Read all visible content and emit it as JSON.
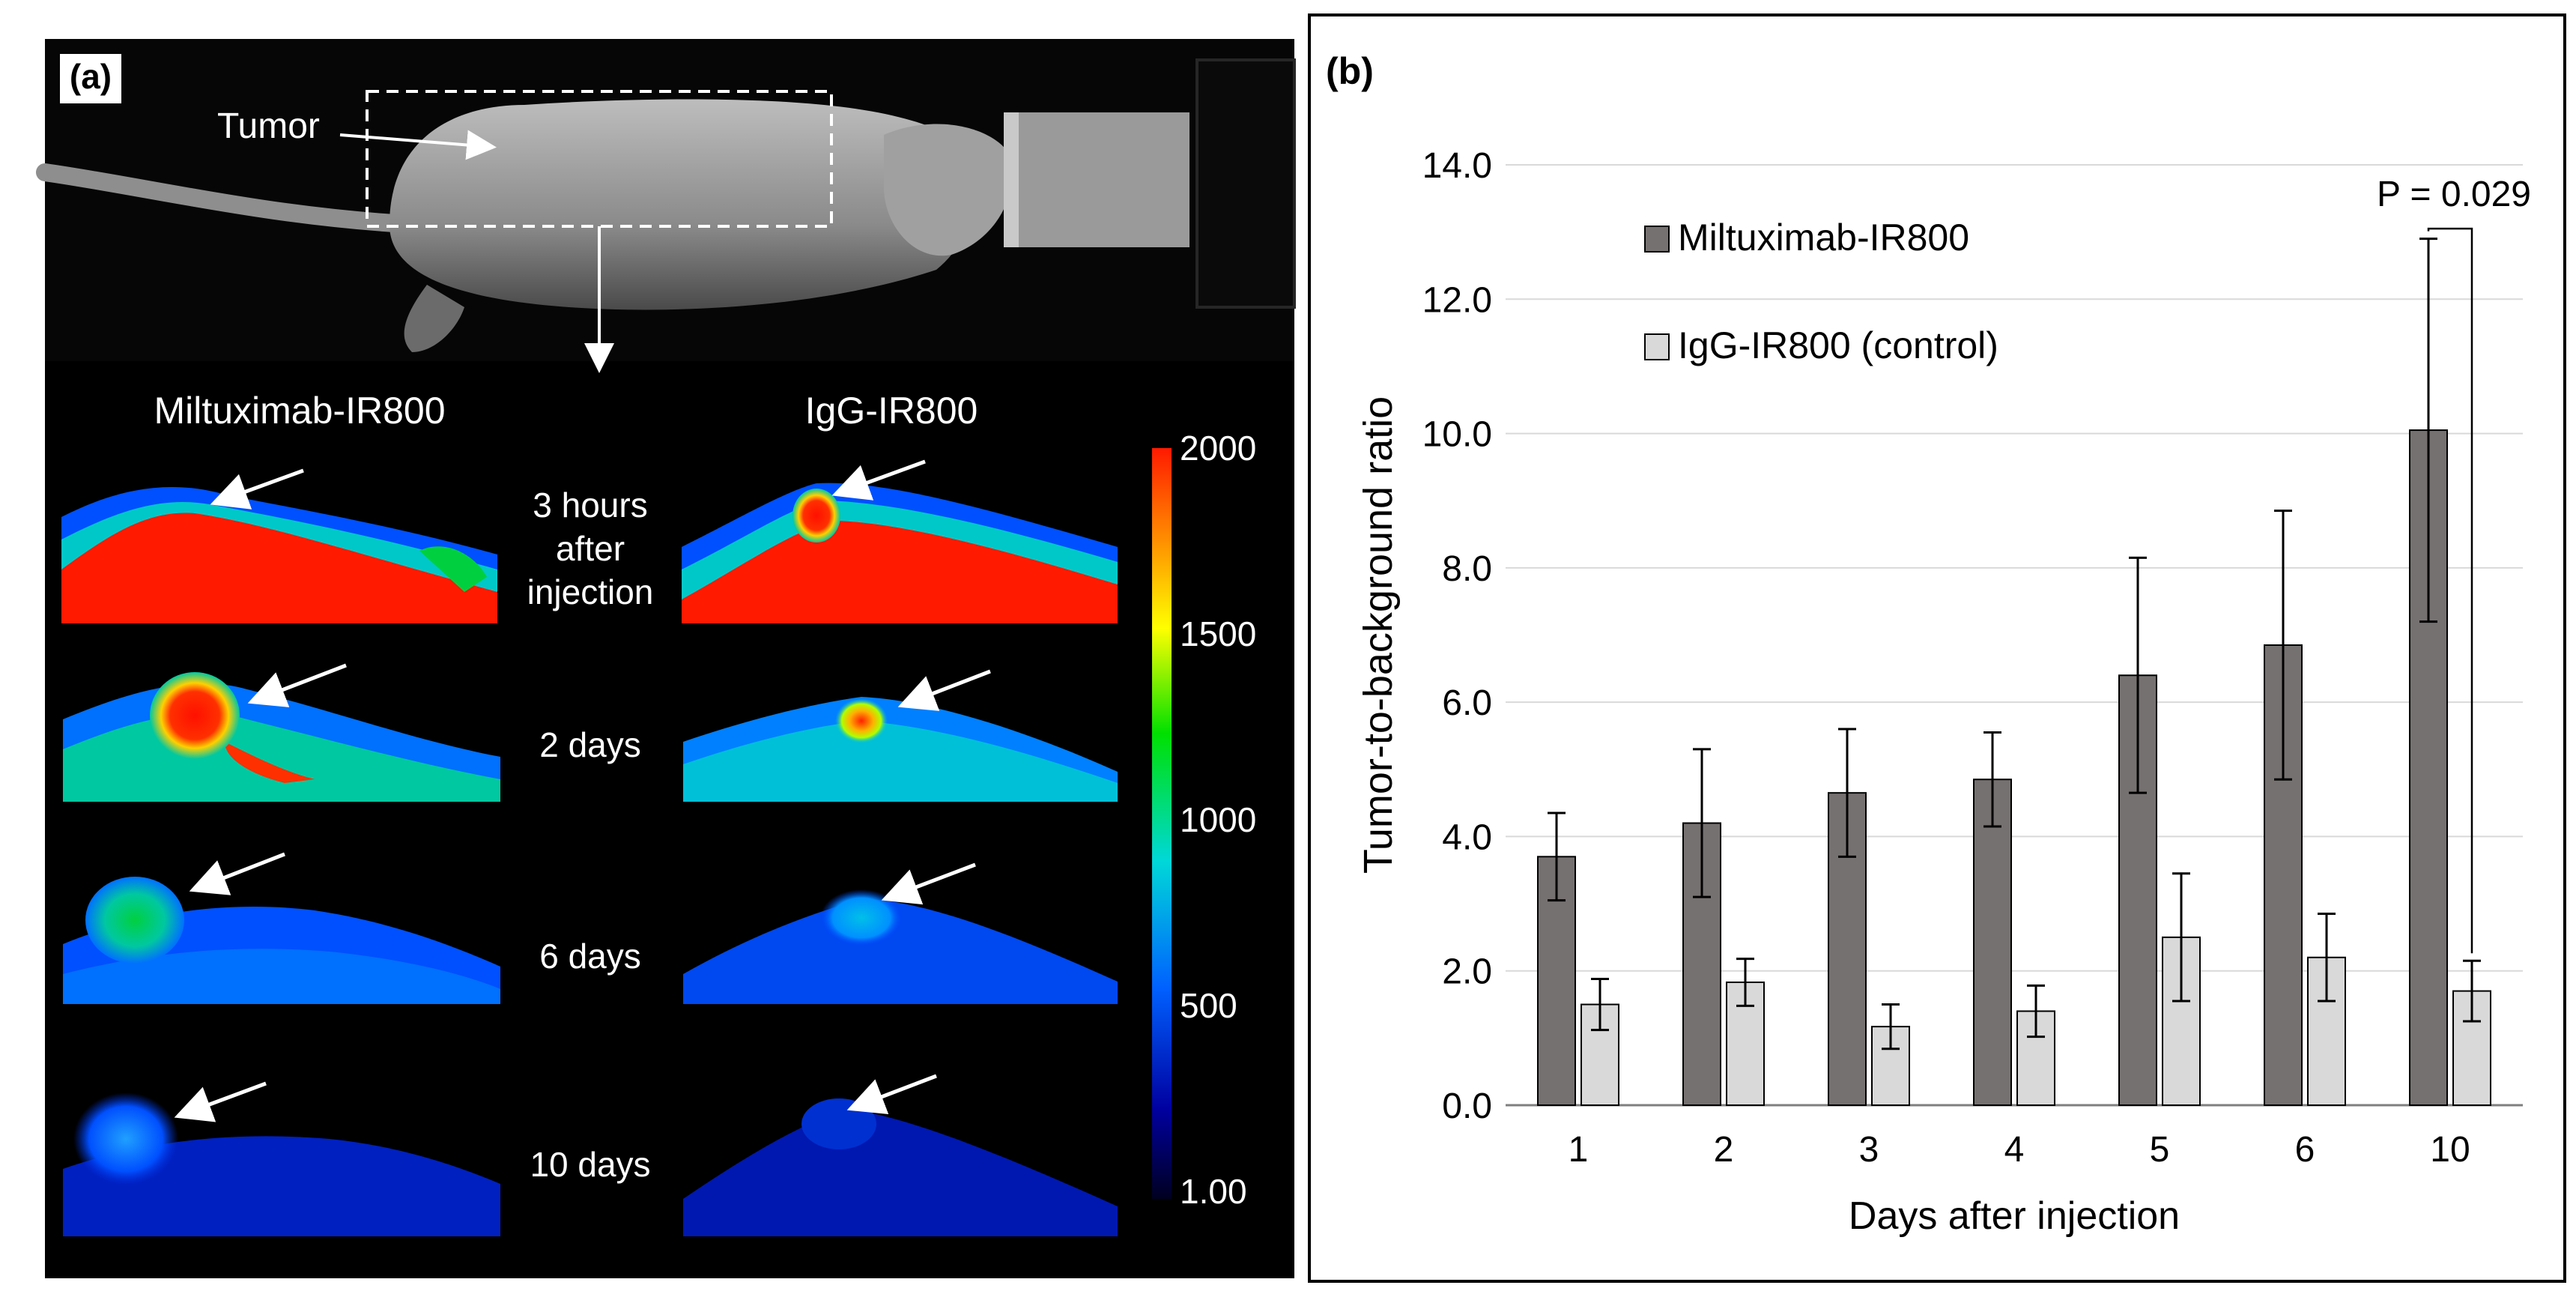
{
  "panel_a": {
    "label": "(a)",
    "tumor_label": "Tumor",
    "column_titles": [
      "Miltuximab-IR800",
      "IgG-IR800"
    ],
    "timepoints": [
      {
        "lines": [
          "3 hours",
          "after",
          "injection"
        ]
      },
      {
        "lines": [
          "2 days"
        ]
      },
      {
        "lines": [
          "6 days"
        ]
      },
      {
        "lines": [
          "10 days"
        ]
      }
    ],
    "colorbar": {
      "ticks": [
        "2000",
        "1500",
        "1000",
        "500",
        "1.00"
      ],
      "colors": [
        "#ff1a00",
        "#ff8c00",
        "#ffff00",
        "#00e000",
        "#00d8d8",
        "#0060ff",
        "#0000a0",
        "#000020"
      ]
    }
  },
  "chart_data": {
    "type": "bar",
    "panel_label": "(b)",
    "title": "",
    "xlabel": "Days after injection",
    "ylabel": "Tumor-to-background ratio",
    "ylim": [
      0,
      14
    ],
    "yticks": [
      0,
      2,
      4,
      6,
      8,
      10,
      12,
      14
    ],
    "ytick_labels": [
      "0.0",
      "2.0",
      "4.0",
      "6.0",
      "8.0",
      "10.0",
      "12.0",
      "14.0"
    ],
    "grid": true,
    "categories": [
      "1",
      "2",
      "3",
      "4",
      "5",
      "6",
      "10"
    ],
    "series": [
      {
        "name": "Miltuximab-IR800",
        "color": "#767171",
        "values": [
          3.7,
          4.2,
          4.65,
          4.85,
          6.4,
          6.85,
          10.05
        ],
        "errors": [
          0.65,
          1.1,
          0.95,
          0.7,
          1.75,
          2.0,
          2.85
        ]
      },
      {
        "name": "IgG-IR800 (control)",
        "color": "#d9d9d9",
        "values": [
          1.5,
          1.83,
          1.17,
          1.4,
          2.5,
          2.2,
          1.7
        ],
        "errors": [
          0.38,
          0.35,
          0.33,
          0.38,
          0.95,
          0.65,
          0.45
        ]
      }
    ],
    "annotation": {
      "text": "P = 0.029",
      "category": "10"
    }
  }
}
